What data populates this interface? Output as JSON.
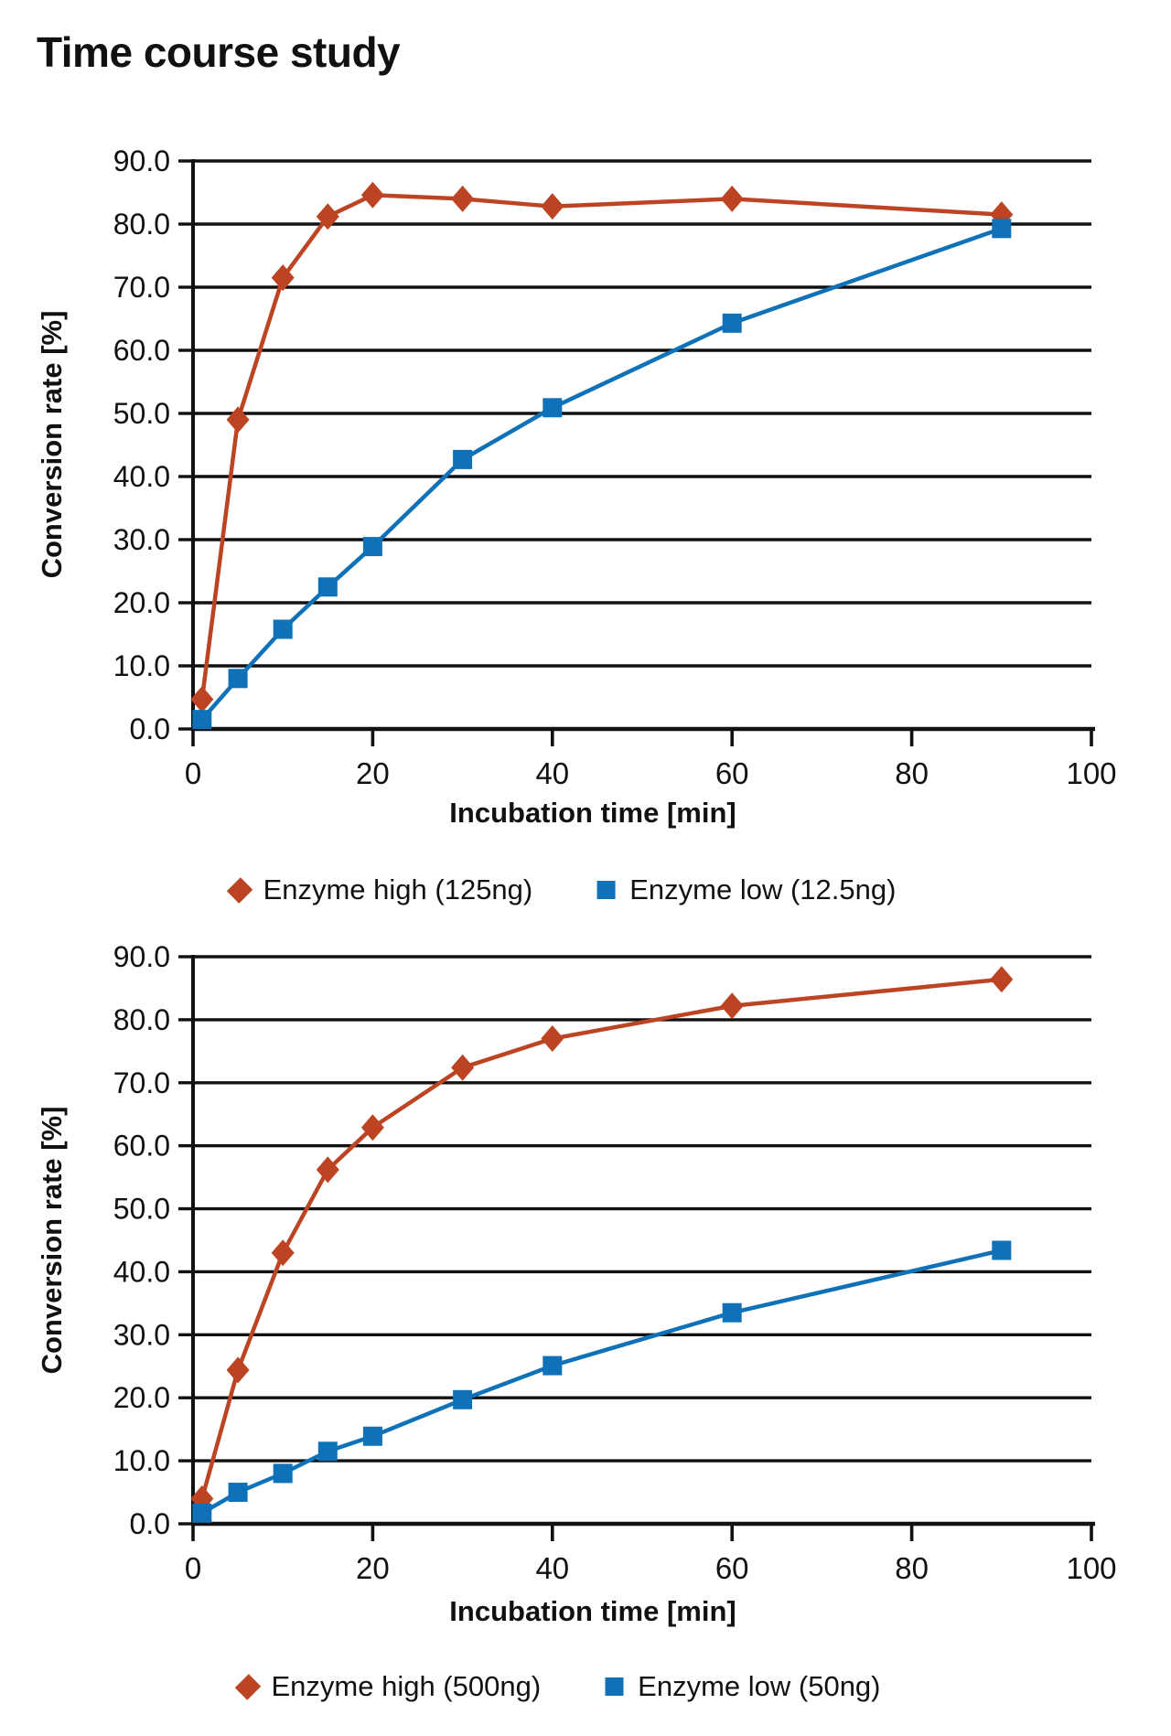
{
  "page": {
    "title": "Time course study"
  },
  "colors": {
    "axis": "#111111",
    "series_high": "#bc4423",
    "series_low": "#0f72b8"
  },
  "chart_data": [
    {
      "type": "line",
      "xlabel": "Incubation time [min]",
      "ylabel": "Conversion rate [%]",
      "xlim": [
        0,
        100
      ],
      "ylim": [
        0,
        90
      ],
      "xticks": [
        0,
        20,
        40,
        60,
        80,
        100
      ],
      "yticks": [
        0,
        10,
        20,
        30,
        40,
        50,
        60,
        70,
        80,
        90
      ],
      "ytick_decimals": 1,
      "grid": "horizontal",
      "legend_position": "bottom",
      "x": [
        1,
        5,
        10,
        15,
        20,
        30,
        40,
        60,
        90
      ],
      "series": [
        {
          "name": "Enzyme high (125ng)",
          "marker": "diamond",
          "color": "#bc4423",
          "values": [
            4.7,
            49.0,
            71.5,
            81.2,
            84.6,
            84.0,
            82.8,
            84.0,
            81.5
          ]
        },
        {
          "name": "Enzyme low (12.5ng)",
          "marker": "square",
          "color": "#0f72b8",
          "values": [
            1.5,
            8.0,
            15.8,
            22.5,
            28.9,
            42.7,
            50.9,
            64.3,
            79.3
          ]
        }
      ]
    },
    {
      "type": "line",
      "xlabel": "Incubation time [min]",
      "ylabel": "Conversion rate [%]",
      "xlim": [
        0,
        100
      ],
      "ylim": [
        0,
        90
      ],
      "xticks": [
        0,
        20,
        40,
        60,
        80,
        100
      ],
      "yticks": [
        0,
        10,
        20,
        30,
        40,
        50,
        60,
        70,
        80,
        90
      ],
      "ytick_decimals": 1,
      "grid": "horizontal",
      "legend_position": "bottom",
      "x": [
        1,
        5,
        10,
        15,
        20,
        30,
        40,
        60,
        90
      ],
      "series": [
        {
          "name": "Enzyme high (500ng)",
          "marker": "diamond",
          "color": "#bc4423",
          "values": [
            4.0,
            24.4,
            43.0,
            56.2,
            62.9,
            72.4,
            77.0,
            82.2,
            86.4
          ]
        },
        {
          "name": "Enzyme low (50ng)",
          "marker": "square",
          "color": "#0f72b8",
          "values": [
            1.7,
            5.0,
            8.0,
            11.5,
            13.9,
            19.7,
            25.1,
            33.5,
            43.4
          ]
        }
      ]
    }
  ]
}
